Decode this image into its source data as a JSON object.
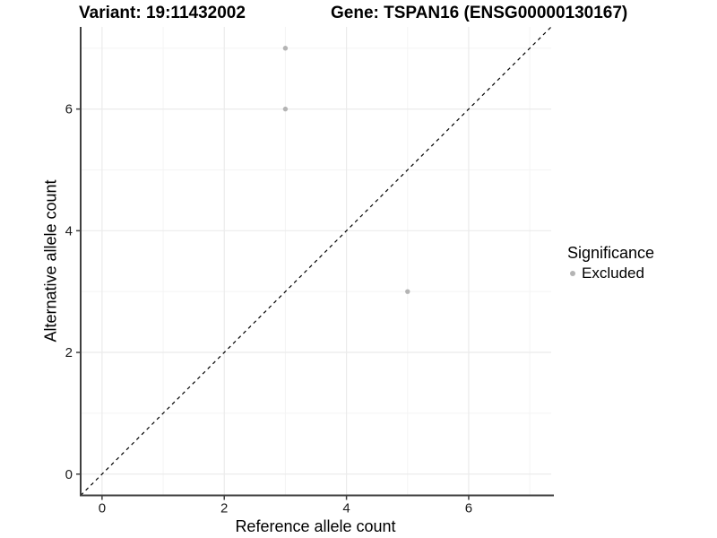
{
  "header": {
    "variant_title": "Variant: 19:11432002",
    "gene_title": "Gene: TSPAN16 (ENSG00000130167)"
  },
  "chart_data": {
    "type": "scatter",
    "title": "Variant: 19:11432002   Gene: TSPAN16 (ENSG00000130167)",
    "xlabel": "Reference allele count",
    "ylabel": "Alternative allele count",
    "xlim": [
      -0.35,
      7.35
    ],
    "ylim": [
      -0.35,
      7.35
    ],
    "x_ticks": [
      0,
      2,
      4,
      6
    ],
    "y_ticks": [
      0,
      2,
      4,
      6
    ],
    "x_minor_ticks": [
      1,
      3,
      5,
      7
    ],
    "y_minor_ticks": [
      1,
      3,
      5,
      7
    ],
    "grid": true,
    "series": [
      {
        "name": "Excluded",
        "color": "#b4b4b4",
        "points": [
          [
            3,
            7
          ],
          [
            3,
            6
          ],
          [
            5,
            3
          ]
        ]
      }
    ],
    "reference_line": {
      "style": "dashed",
      "color": "#000000",
      "from": [
        -0.35,
        -0.35
      ],
      "to": [
        7.35,
        7.35
      ]
    },
    "legend": {
      "title": "Significance",
      "position": "right",
      "entries": [
        {
          "label": "Excluded",
          "color": "#b4b4b4"
        }
      ]
    }
  },
  "colors": {
    "background": "#ffffff",
    "grid_major": "#ebebeb",
    "grid_minor": "#f4f4f4",
    "axis_line": "#3f3f3f",
    "tick_label": "#1a1a1a",
    "point": "#b4b4b4"
  }
}
